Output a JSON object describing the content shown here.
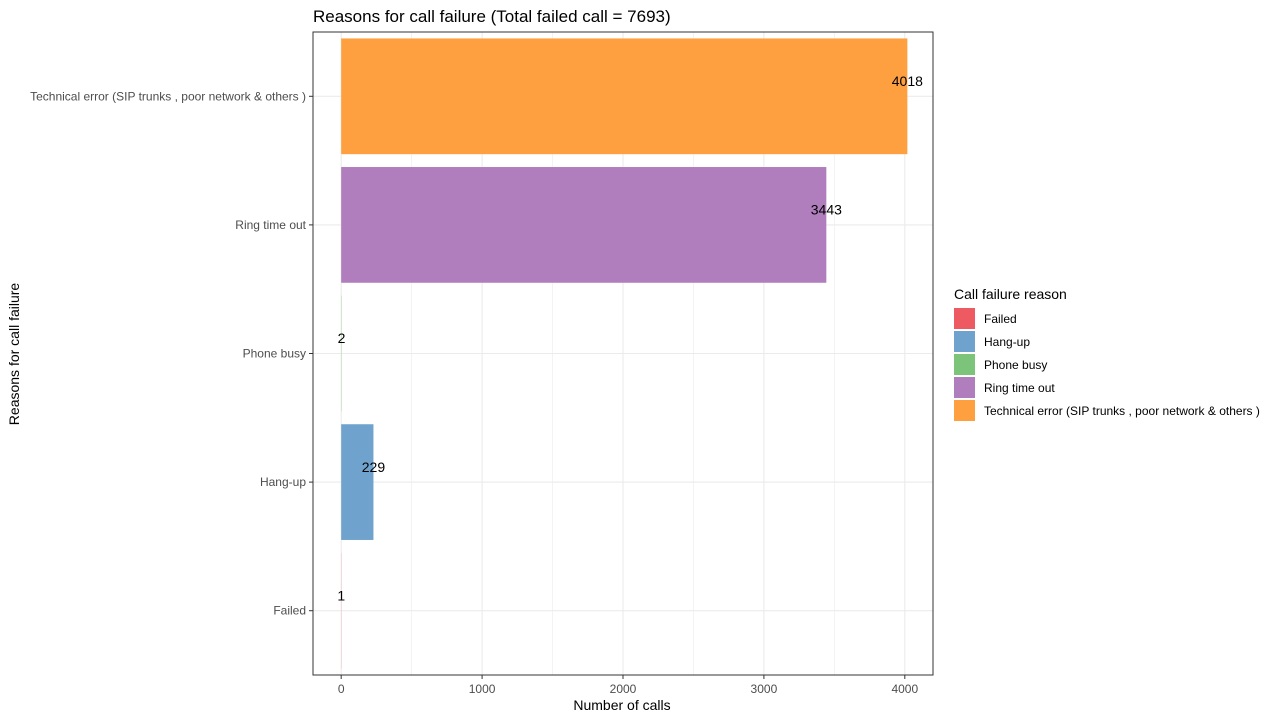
{
  "chart_data": {
    "type": "bar",
    "orientation": "horizontal",
    "title": "Reasons for call failure (Total failed call = 7693)",
    "xlabel": "Number of calls",
    "ylabel": "Reasons for call failure",
    "xlim": [
      -200,
      4200
    ],
    "xticks": [
      0,
      1000,
      2000,
      3000,
      4000
    ],
    "xtick_labels": [
      "0",
      "1000",
      "2000",
      "3000",
      "4000"
    ],
    "categories": [
      "Failed",
      "Hang-up",
      "Phone busy",
      "Ring time out",
      "Technical error (SIP trunks , poor network & others )"
    ],
    "values": [
      1,
      229,
      2,
      3443,
      4018
    ],
    "data_labels": [
      "1",
      "229",
      "2",
      "3443",
      "4018"
    ],
    "colors": [
      "#EE5A62",
      "#6FA3CE",
      "#7DC47B",
      "#B07DBD",
      "#FFA040"
    ],
    "grid": true,
    "legend": {
      "title": "Call failure reason",
      "position": "right",
      "entries": [
        "Failed",
        "Hang-up",
        "Phone busy",
        "Ring time out",
        "Technical error (SIP trunks , poor network & others )"
      ]
    }
  }
}
